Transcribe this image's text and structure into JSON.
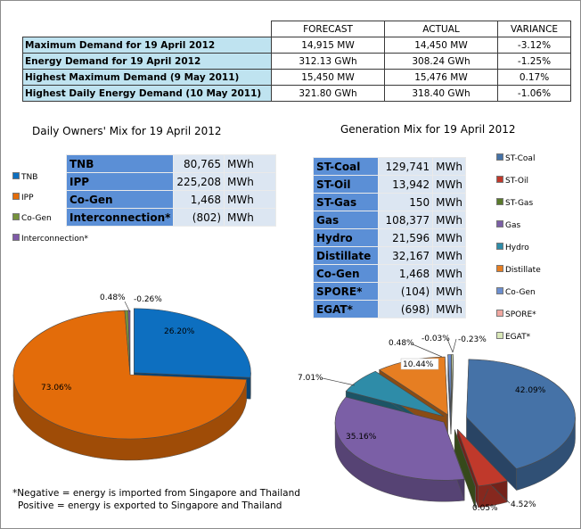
{
  "summary": {
    "headers": [
      "",
      "FORECAST",
      "ACTUAL",
      "VARIANCE"
    ],
    "rows": [
      {
        "label": "Maximum Demand for 19 April 2012",
        "forecast": "14,915 MW",
        "actual": "14,450 MW",
        "variance": "-3.12%"
      },
      {
        "label": "Energy Demand for 19 April 2012",
        "forecast": "312.13 GWh",
        "actual": "308.24 GWh",
        "variance": "-1.25%"
      },
      {
        "label": "Highest Maximum Demand (9 May 2011)",
        "forecast": "15,450 MW",
        "actual": "15,476 MW",
        "variance": "0.17%"
      },
      {
        "label": "Highest Daily Energy Demand (10 May 2011)",
        "forecast": "321.80 GWh",
        "actual": "318.40 GWh",
        "variance": "-1.06%"
      }
    ]
  },
  "owners": {
    "title": "Daily Owners' Mix for 19 April 2012",
    "table": [
      {
        "name": "TNB",
        "value": "80,765",
        "unit": "MWh"
      },
      {
        "name": "IPP",
        "value": "225,208",
        "unit": "MWh"
      },
      {
        "name": "Co-Gen",
        "value": "1,468",
        "unit": "MWh"
      },
      {
        "name": "Interconnection*",
        "value": "(802)",
        "unit": "MWh"
      }
    ]
  },
  "generation": {
    "title": "Generation Mix for 19 April 2012",
    "table": [
      {
        "name": "ST-Coal",
        "value": "129,741",
        "unit": "MWh"
      },
      {
        "name": "ST-Oil",
        "value": "13,942",
        "unit": "MWh"
      },
      {
        "name": "ST-Gas",
        "value": "150",
        "unit": "MWh"
      },
      {
        "name": "Gas",
        "value": "108,377",
        "unit": "MWh"
      },
      {
        "name": "Hydro",
        "value": "21,596",
        "unit": "MWh"
      },
      {
        "name": "Distillate",
        "value": "32,167",
        "unit": "MWh"
      },
      {
        "name": "Co-Gen",
        "value": "1,468",
        "unit": "MWh"
      },
      {
        "name": "SPORE*",
        "value": "(104)",
        "unit": "MWh"
      },
      {
        "name": "EGAT*",
        "value": "(698)",
        "unit": "MWh"
      }
    ]
  },
  "note": {
    "line1": "*Negative = energy is imported from Singapore and Thailand",
    "line2": "Positive = energy is exported to Singapore and Thailand"
  },
  "chart_data": [
    {
      "type": "pie",
      "title": "Daily Owners' Mix for 19 April 2012",
      "categories": [
        "TNB",
        "IPP",
        "Co-Gen",
        "Interconnection*"
      ],
      "values": [
        26.2,
        73.06,
        0.48,
        -0.26
      ],
      "labels": [
        "26.20%",
        "73.06%",
        "0.48%",
        "-0.26%"
      ],
      "colors": [
        "#0d6fc0",
        "#e36c0a",
        "#76923c",
        "#7f5aa8"
      ],
      "legend": "left"
    },
    {
      "type": "pie",
      "title": "Generation Mix for 19 April 2012",
      "categories": [
        "ST-Coal",
        "ST-Oil",
        "ST-Gas",
        "Gas",
        "Hydro",
        "Distillate",
        "Co-Gen",
        "SPORE*",
        "EGAT*"
      ],
      "values": [
        42.09,
        4.52,
        0.05,
        35.16,
        7.01,
        10.44,
        0.48,
        -0.03,
        -0.23
      ],
      "labels": [
        "42.09%",
        "4.52%",
        "0.05%",
        "35.16%",
        "7.01%",
        "10.44%",
        "0.48%",
        "-0.03%",
        "-0.23%"
      ],
      "colors": [
        "#4572a7",
        "#c0392b",
        "#5a7a2b",
        "#7b5fa6",
        "#2e8ca8",
        "#e67e22",
        "#6c8fd0",
        "#f0a7a0",
        "#d9e8b8"
      ],
      "legend": "right"
    }
  ]
}
